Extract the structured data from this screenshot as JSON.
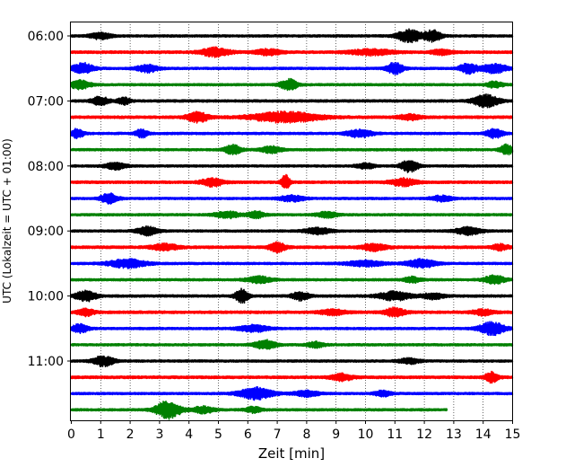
{
  "chart_data": {
    "type": "line",
    "title": "",
    "xlabel": "Zeit  [min]",
    "ylabel": "UTC (Lokalzeit = UTC + 01:00)",
    "xlim": [
      0,
      15
    ],
    "x_ticks": [
      0,
      1,
      2,
      3,
      4,
      5,
      6,
      7,
      8,
      9,
      10,
      11,
      12,
      13,
      14,
      15
    ],
    "x_tick_labels": [
      "0",
      "1",
      "2",
      "3",
      "4",
      "5",
      "6",
      "7",
      "8",
      "9",
      "10",
      "11",
      "12",
      "13",
      "14",
      "15"
    ],
    "y_tick_labels": [
      "06:00",
      "07:00",
      "08:00",
      "09:00",
      "10:00",
      "11:00"
    ],
    "y_tick_rows": [
      0,
      4,
      8,
      12,
      16,
      20
    ],
    "grid": "vertical dotted at each minute",
    "trace_interval_min": 15,
    "color_cycle": [
      "#000000",
      "#ff0000",
      "#0000ff",
      "#008000"
    ],
    "traces": [
      {
        "start": "06:00",
        "color": "#000000",
        "end_min": 15,
        "base_amp": 0.12,
        "events": [
          [
            1.0,
            0.5,
            0.35
          ],
          [
            11.5,
            0.6,
            0.7
          ],
          [
            12.3,
            0.4,
            0.6
          ]
        ]
      },
      {
        "start": "06:15",
        "color": "#ff0000",
        "end_min": 15,
        "base_amp": 0.14,
        "events": [
          [
            4.9,
            0.7,
            0.45
          ],
          [
            6.7,
            0.6,
            0.3
          ],
          [
            10.2,
            1.0,
            0.3
          ],
          [
            12.6,
            0.5,
            0.25
          ]
        ]
      },
      {
        "start": "06:30",
        "color": "#0000ff",
        "end_min": 15,
        "base_amp": 0.12,
        "events": [
          [
            0.4,
            0.5,
            0.6
          ],
          [
            2.6,
            0.5,
            0.4
          ],
          [
            11.0,
            0.4,
            0.6
          ],
          [
            13.5,
            0.4,
            0.6
          ],
          [
            14.4,
            0.6,
            0.5
          ]
        ]
      },
      {
        "start": "06:45",
        "color": "#008000",
        "end_min": 15,
        "base_amp": 0.12,
        "events": [
          [
            0.3,
            0.5,
            0.45
          ],
          [
            7.4,
            0.4,
            0.6
          ],
          [
            14.4,
            0.4,
            0.3
          ]
        ]
      },
      {
        "start": "07:00",
        "color": "#000000",
        "end_min": 15,
        "base_amp": 0.13,
        "events": [
          [
            1.0,
            0.4,
            0.45
          ],
          [
            1.8,
            0.3,
            0.35
          ],
          [
            14.1,
            0.6,
            0.65
          ]
        ]
      },
      {
        "start": "07:15",
        "color": "#ff0000",
        "end_min": 15,
        "base_amp": 0.14,
        "events": [
          [
            4.3,
            0.5,
            0.55
          ],
          [
            7.3,
            1.6,
            0.55
          ],
          [
            11.5,
            0.5,
            0.3
          ]
        ]
      },
      {
        "start": "07:30",
        "color": "#0000ff",
        "end_min": 15,
        "base_amp": 0.12,
        "events": [
          [
            0.2,
            0.3,
            0.5
          ],
          [
            2.4,
            0.3,
            0.45
          ],
          [
            9.8,
            0.6,
            0.45
          ],
          [
            14.4,
            0.4,
            0.5
          ]
        ]
      },
      {
        "start": "07:45",
        "color": "#008000",
        "end_min": 15,
        "base_amp": 0.12,
        "events": [
          [
            5.5,
            0.4,
            0.5
          ],
          [
            6.8,
            0.5,
            0.35
          ],
          [
            14.8,
            0.3,
            0.55
          ]
        ]
      },
      {
        "start": "08:00",
        "color": "#000000",
        "end_min": 15,
        "base_amp": 0.12,
        "events": [
          [
            1.5,
            0.5,
            0.35
          ],
          [
            10.0,
            0.4,
            0.3
          ],
          [
            11.5,
            0.4,
            0.65
          ]
        ]
      },
      {
        "start": "08:15",
        "color": "#ff0000",
        "end_min": 15,
        "base_amp": 0.14,
        "events": [
          [
            4.8,
            0.5,
            0.45
          ],
          [
            7.3,
            0.2,
            0.75
          ],
          [
            11.3,
            0.6,
            0.4
          ]
        ]
      },
      {
        "start": "08:30",
        "color": "#0000ff",
        "end_min": 15,
        "base_amp": 0.12,
        "events": [
          [
            1.3,
            0.4,
            0.55
          ],
          [
            7.5,
            0.6,
            0.3
          ],
          [
            12.6,
            0.5,
            0.3
          ]
        ]
      },
      {
        "start": "08:45",
        "color": "#008000",
        "end_min": 15,
        "base_amp": 0.12,
        "events": [
          [
            5.3,
            0.6,
            0.35
          ],
          [
            6.3,
            0.4,
            0.35
          ],
          [
            8.7,
            0.5,
            0.3
          ]
        ]
      },
      {
        "start": "09:00",
        "color": "#000000",
        "end_min": 15,
        "base_amp": 0.12,
        "events": [
          [
            2.6,
            0.5,
            0.45
          ],
          [
            8.4,
            0.6,
            0.35
          ],
          [
            13.5,
            0.6,
            0.4
          ]
        ]
      },
      {
        "start": "09:15",
        "color": "#ff0000",
        "end_min": 15,
        "base_amp": 0.14,
        "events": [
          [
            3.2,
            0.6,
            0.35
          ],
          [
            7.0,
            0.4,
            0.5
          ],
          [
            10.3,
            0.6,
            0.35
          ],
          [
            14.6,
            0.4,
            0.3
          ]
        ]
      },
      {
        "start": "09:30",
        "color": "#0000ff",
        "end_min": 15,
        "base_amp": 0.12,
        "events": [
          [
            1.9,
            0.9,
            0.45
          ],
          [
            10.0,
            0.9,
            0.3
          ],
          [
            11.9,
            0.7,
            0.45
          ]
        ]
      },
      {
        "start": "09:45",
        "color": "#008000",
        "end_min": 15,
        "base_amp": 0.12,
        "events": [
          [
            6.4,
            0.6,
            0.35
          ],
          [
            11.6,
            0.4,
            0.3
          ],
          [
            14.4,
            0.5,
            0.45
          ]
        ]
      },
      {
        "start": "10:00",
        "color": "#000000",
        "end_min": 15,
        "base_amp": 0.13,
        "events": [
          [
            0.5,
            0.5,
            0.55
          ],
          [
            5.8,
            0.3,
            0.75
          ],
          [
            7.8,
            0.4,
            0.45
          ],
          [
            11.0,
            0.8,
            0.45
          ],
          [
            12.3,
            0.5,
            0.3
          ]
        ]
      },
      {
        "start": "10:15",
        "color": "#ff0000",
        "end_min": 15,
        "base_amp": 0.14,
        "events": [
          [
            0.5,
            0.4,
            0.35
          ],
          [
            8.9,
            0.6,
            0.3
          ],
          [
            11.0,
            0.5,
            0.45
          ],
          [
            14.0,
            0.5,
            0.3
          ]
        ]
      },
      {
        "start": "10:30",
        "color": "#0000ff",
        "end_min": 15,
        "base_amp": 0.12,
        "events": [
          [
            0.3,
            0.4,
            0.45
          ],
          [
            6.2,
            0.7,
            0.35
          ],
          [
            14.3,
            0.6,
            0.7
          ]
        ]
      },
      {
        "start": "10:45",
        "color": "#008000",
        "end_min": 15,
        "base_amp": 0.12,
        "events": [
          [
            6.6,
            0.5,
            0.5
          ],
          [
            8.3,
            0.4,
            0.3
          ]
        ]
      },
      {
        "start": "11:00",
        "color": "#000000",
        "end_min": 15,
        "base_amp": 0.12,
        "events": [
          [
            1.1,
            0.5,
            0.55
          ],
          [
            11.5,
            0.5,
            0.3
          ]
        ]
      },
      {
        "start": "11:15",
        "color": "#ff0000",
        "end_min": 15,
        "base_amp": 0.14,
        "events": [
          [
            9.2,
            0.5,
            0.35
          ],
          [
            14.3,
            0.3,
            0.6
          ]
        ]
      },
      {
        "start": "11:30",
        "color": "#0000ff",
        "end_min": 15,
        "base_amp": 0.12,
        "events": [
          [
            6.3,
            0.8,
            0.65
          ],
          [
            8.0,
            0.6,
            0.3
          ],
          [
            10.6,
            0.4,
            0.3
          ]
        ]
      },
      {
        "start": "11:45",
        "color": "#008000",
        "end_min": 12.8,
        "base_amp": 0.12,
        "events": [
          [
            3.3,
            0.6,
            0.95
          ],
          [
            4.5,
            0.5,
            0.35
          ],
          [
            6.2,
            0.4,
            0.3
          ]
        ]
      }
    ]
  }
}
